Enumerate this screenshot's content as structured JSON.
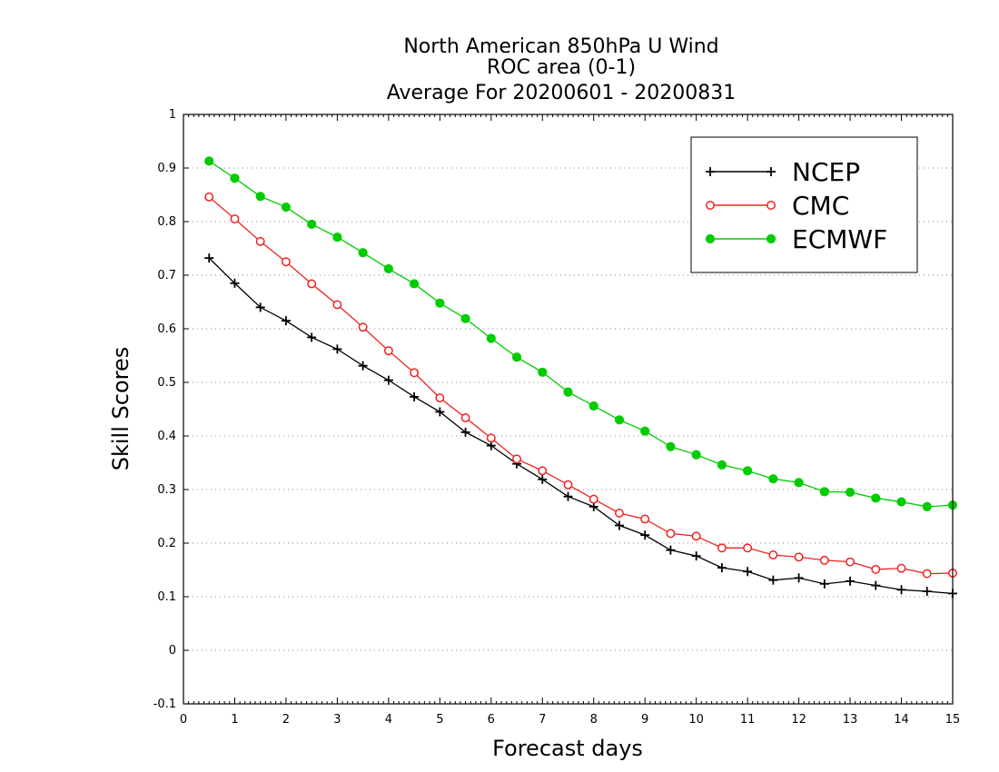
{
  "chart_data": {
    "type": "line",
    "title": [
      "North American 850hPa U Wind",
      "ROC area (0-1)",
      "Average For 20200601 - 20200831"
    ],
    "xlabel": "Forecast days",
    "ylabel": "Skill Scores",
    "xlim": [
      0,
      15
    ],
    "ylim": [
      -0.1,
      1
    ],
    "xticks": [
      0,
      1,
      2,
      3,
      4,
      5,
      6,
      7,
      8,
      9,
      10,
      11,
      12,
      13,
      14,
      15
    ],
    "yticks": [
      -0.1,
      0,
      0.1,
      0.2,
      0.3,
      0.4,
      0.5,
      0.6,
      0.7,
      0.8,
      0.9,
      1
    ],
    "ytick_labels": [
      "-0.1",
      "0",
      "0.1",
      "0.2",
      "0.3",
      "0.4",
      "0.5",
      "0.6",
      "0.7",
      "0.8",
      "0.9",
      "1"
    ],
    "grid": "horizontal dotted",
    "legend_position": "top-right",
    "x": [
      0.5,
      1,
      1.5,
      2,
      2.5,
      3,
      3.5,
      4,
      4.5,
      5,
      5.5,
      6,
      6.5,
      7,
      7.5,
      8,
      8.5,
      9,
      9.5,
      10,
      10.5,
      11,
      11.5,
      12,
      12.5,
      13,
      13.5,
      14,
      14.5,
      15
    ],
    "series": [
      {
        "name": "NCEP",
        "color": "#000000",
        "marker": "plus",
        "values": [
          0.732,
          0.685,
          0.64,
          0.615,
          0.584,
          0.562,
          0.531,
          0.504,
          0.473,
          0.445,
          0.407,
          0.382,
          0.348,
          0.319,
          0.287,
          0.268,
          0.233,
          0.215,
          0.187,
          0.176,
          0.154,
          0.147,
          0.131,
          0.135,
          0.124,
          0.129,
          0.121,
          0.113,
          0.11,
          0.106
        ]
      },
      {
        "name": "CMC",
        "color": "#ee2222",
        "marker": "open-circle",
        "values": [
          0.846,
          0.805,
          0.763,
          0.725,
          0.684,
          0.645,
          0.603,
          0.559,
          0.518,
          0.471,
          0.434,
          0.396,
          0.357,
          0.335,
          0.309,
          0.282,
          0.256,
          0.245,
          0.218,
          0.213,
          0.191,
          0.191,
          0.178,
          0.174,
          0.168,
          0.165,
          0.151,
          0.153,
          0.143,
          0.144
        ]
      },
      {
        "name": "ECMWF",
        "color": "#00cc00",
        "marker": "filled-circle",
        "values": [
          0.913,
          0.881,
          0.847,
          0.827,
          0.795,
          0.771,
          0.742,
          0.712,
          0.684,
          0.648,
          0.619,
          0.582,
          0.547,
          0.519,
          0.482,
          0.456,
          0.43,
          0.409,
          0.38,
          0.365,
          0.346,
          0.335,
          0.32,
          0.313,
          0.296,
          0.295,
          0.284,
          0.277,
          0.268,
          0.271
        ]
      }
    ]
  }
}
